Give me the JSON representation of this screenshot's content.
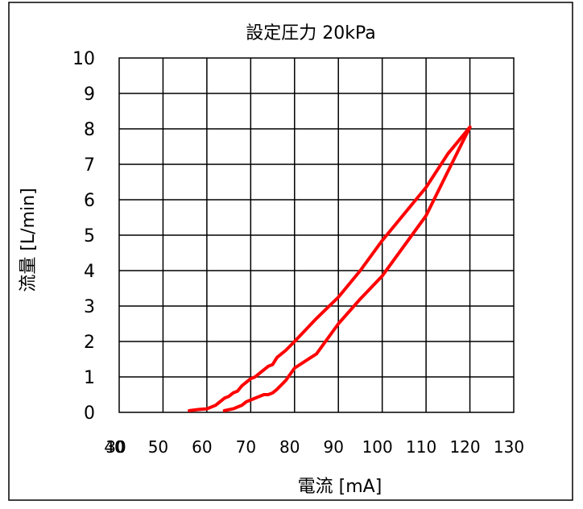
{
  "chart_data": {
    "type": "line",
    "title": "設定圧力 20kPa",
    "xlabel": "電流 [mA]",
    "ylabel": "流量 [L/min]",
    "xlim": [
      30,
      130
    ],
    "ylim": [
      0,
      10
    ],
    "x_ticks": [
      30,
      40,
      50,
      60,
      70,
      80,
      90,
      100,
      110,
      120,
      130
    ],
    "y_ticks": [
      0,
      1,
      2,
      3,
      4,
      5,
      6,
      7,
      8,
      9,
      10
    ],
    "grid": true,
    "legend": "none",
    "color": "#ff0000",
    "series": [
      {
        "x": [
          56,
          58,
          60,
          62,
          63,
          64,
          65,
          66,
          67,
          68,
          69,
          70,
          71,
          72,
          73,
          74,
          75,
          76,
          78,
          80,
          85,
          90,
          95,
          100,
          105,
          110,
          115,
          120
        ],
        "y": [
          0.05,
          0.08,
          0.1,
          0.2,
          0.3,
          0.4,
          0.45,
          0.55,
          0.6,
          0.75,
          0.85,
          0.95,
          1.0,
          1.1,
          1.2,
          1.3,
          1.35,
          1.55,
          1.75,
          2.0,
          2.65,
          3.25,
          4.0,
          4.85,
          5.6,
          6.35,
          7.3,
          8.05
        ]
      },
      {
        "x": [
          64,
          66,
          67,
          68,
          69,
          70,
          71,
          72,
          73,
          74,
          75,
          76,
          78,
          80,
          85,
          90,
          95,
          100,
          105,
          110,
          115,
          120
        ],
        "y": [
          0.05,
          0.1,
          0.15,
          0.2,
          0.3,
          0.35,
          0.4,
          0.45,
          0.5,
          0.5,
          0.55,
          0.65,
          0.9,
          1.25,
          1.65,
          2.5,
          3.2,
          3.85,
          4.7,
          5.55,
          6.8,
          8.05
        ]
      }
    ]
  }
}
